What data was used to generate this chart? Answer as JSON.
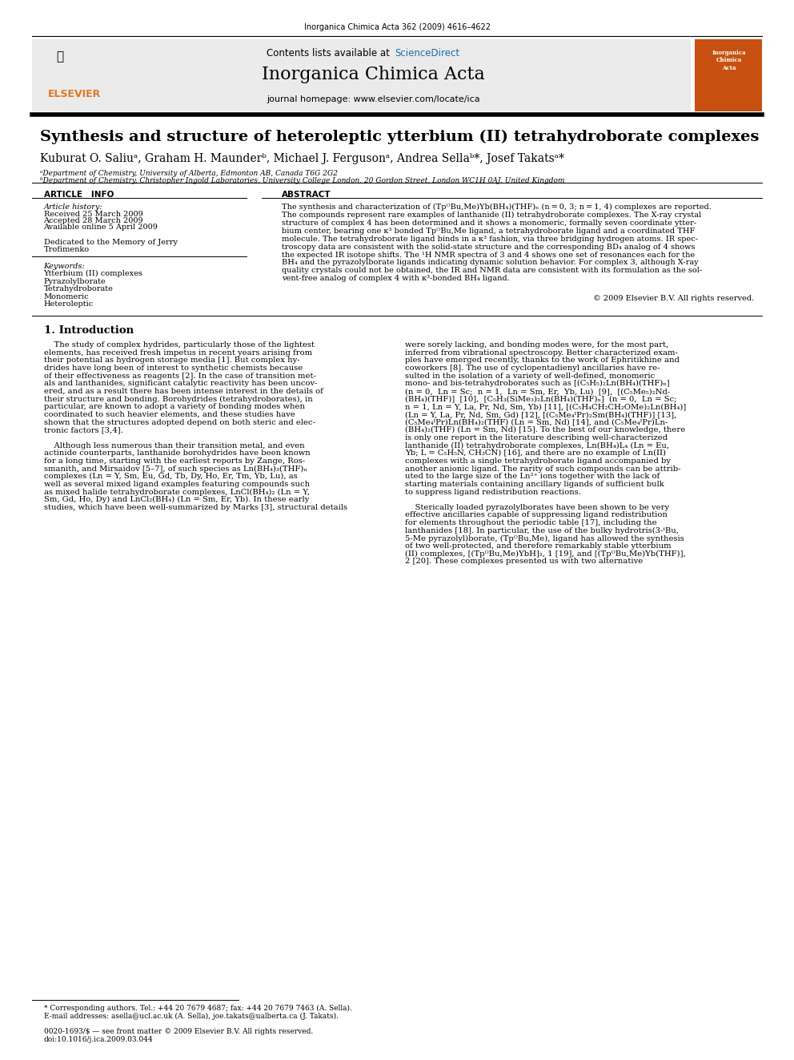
{
  "page_width": 9.92,
  "page_height": 13.23,
  "background_color": "#ffffff",
  "journal_ref": "Inorganica Chimica Acta 362 (2009) 4616–4622",
  "sciencedirect_color": "#1a6ca8",
  "journal_name": "Inorganica Chimica Acta",
  "journal_url": "journal homepage: www.elsevier.com/locate/ica",
  "title": "Synthesis and structure of heteroleptic ytterbium (II) tetrahydroborate complexes",
  "authors": "Kuburat O. Saliuᵃ, Graham H. Maunderᵇ, Michael J. Fergusonᵃ, Andrea Sellaᵇ*, Josef Takatsᵃ*",
  "affil_a": "ᵃDepartment of Chemistry, University of Alberta, Edmonton AB, Canada T6G 2G2",
  "affil_b": "ᵇDepartment of Chemistry, Christopher Ingold Laboratories, University College London, 20 Gordon Street, London WC1H 0AJ, United Kingdom",
  "article_info_title": "ARTICLE   INFO",
  "abstract_title": "ABSTRACT",
  "article_history_label": "Article history:",
  "received": "Received 25 March 2009",
  "accepted": "Accepted 28 March 2009",
  "available": "Available online 5 April 2009",
  "dedication_line1": "Dedicated to the Memory of Jerry",
  "dedication_line2": "Trofimenko",
  "keywords_label": "Keywords:",
  "keywords": [
    "Ytterbium (II) complexes",
    "Pyrazolylborate",
    "Tetrahydroborate",
    "Monomeric",
    "Heteroleptic"
  ],
  "copyright": "© 2009 Elsevier B.V. All rights reserved.",
  "intro_title": "1. Introduction",
  "footnote_star": "* Corresponding authors. Tel.: +44 20 7679 4687; fax: +44 20 7679 7463 (A. Sella).",
  "footnote_email": "E-mail addresses: asella@ucl.ac.uk (A. Sella), joe.takats@ualberta.ca (J. Takats).",
  "issn_line": "0020-1693/$ — see front matter © 2009 Elsevier B.V. All rights reserved.",
  "doi_line": "doi:10.1016/j.ica.2009.03.044",
  "orange_color": "#e07820",
  "cover_color": "#c85010",
  "abstract_lines": [
    "The synthesis and characterization of (TpᴼBu,Me)Yb(BH₄)(THF)ₙ (n = 0, 3; n = 1, 4) complexes are reported.",
    "The compounds represent rare examples of lanthanide (II) tetrahydroborate complexes. The X-ray crystal",
    "structure of complex 4 has been determined and it shows a monomeric, formally seven coordinate ytter-",
    "bium center, bearing one κ³ bonded TpᴼBu,Me ligand, a tetrahydroborate ligand and a coordinated THF",
    "molecule. The tetrahydroborate ligand binds in a κ³ fashion, via three bridging hydrogen atoms. IR spec-",
    "troscopy data are consistent with the solid-state structure and the corresponding BD₄ analog of 4 shows",
    "the expected IR isotope shifts. The ¹H NMR spectra of 3 and 4 shows one set of resonances each for the",
    "BH₄ and the pyrazolylborate ligands indicating dynamic solution behavior. For complex 3, although X-ray",
    "quality crystals could not be obtained, the IR and NMR data are consistent with its formulation as the sol-",
    "vent-free analog of complex 4 with κ³-bonded BH₄ ligand."
  ],
  "intro_col1_lines": [
    "    The study of complex hydrides, particularly those of the lightest",
    "elements, has received fresh impetus in recent years arising from",
    "their potential as hydrogen storage media [1]. But complex hy-",
    "drides have long been of interest to synthetic chemists because",
    "of their effectiveness as reagents [2]. In the case of transition met-",
    "als and lanthanides, significant catalytic reactivity has been uncov-",
    "ered, and as a result there has been intense interest in the details of",
    "their structure and bonding. Borohydrides (tetrahydroborates), in",
    "particular, are known to adopt a variety of bonding modes when",
    "coordinated to such heavier elements, and these studies have",
    "shown that the structures adopted depend on both steric and elec-",
    "tronic factors [3,4].",
    "",
    "    Although less numerous than their transition metal, and even",
    "actinide counterparts, lanthanide borohydrides have been known",
    "for a long time, starting with the earliest reports by Zange, Ros-",
    "smanith, and Mirsaidov [5–7], of such species as Ln(BH₄)₃(THF)ₙ",
    "complexes (Ln = Y, Sm, Eu, Gd, Tb, Dy, Ho, Er, Tm, Yb, Lu), as",
    "well as several mixed ligand examples featuring compounds such",
    "as mixed halide tetrahydroborate complexes, LnCl(BH₄)₂ (Ln = Y,",
    "Sm, Gd, Ho, Dy) and LnCl₂(BH₄) (Ln = Sm, Er, Yb). In these early",
    "studies, which have been well-summarized by Marks [3], structural details"
  ],
  "intro_col2_lines": [
    "were sorely lacking, and bonding modes were, for the most part,",
    "inferred from vibrational spectroscopy. Better characterized exam-",
    "ples have emerged recently, thanks to the work of Ephritikhine and",
    "coworkers [8]. The use of cyclopentadienyl ancillaries have re-",
    "sulted in the isolation of a variety of well-defined, monomeric",
    "mono- and bis-tetrahydroborates such as [(C₅H₅)₂Ln(BH₄)(THF)ₙ]",
    "(n = 0,  Ln = Sc;  n = 1,  Ln = Sm, Er,  Yb, Lu)  [9],  [(C₅Me₅)₂Nd-",
    "(BH₄)(THF)]  [10],  [C₅H₃(SiMe₃)₂Ln(BH₄)(THF)ₙ]  (n = 0,  Ln = Sc;",
    "n = 1, Ln = Y, La, Pr, Nd, Sm, Yb) [11], [(C₅H₄CH₂CH₂OMe)₂Ln(BH₄)]",
    "(Ln = Y, La, Pr, Nd, Sm, Gd) [12], [(C₅Me₄ᴵPr)₂Sm(BH₄)(THF)] [13],",
    "(C₅Me₄ᴵPr)Ln(BH₄)₂(THF) (Ln = Sm, Nd) [14], and (C₅Me₄ᴵPr)Ln-",
    "(BH₄)₂(THF) (Ln = Sm, Nd) [15]. To the best of our knowledge, there",
    "is only one report in the literature describing well-characterized",
    "lanthanide (II) tetrahydroborate complexes, Ln(BH₄)L₄ (Ln = Eu,",
    "Yb; L = C₅H₅N, CH₃CN) [16], and there are no example of Ln(II)",
    "complexes with a single tetrahydroborate ligand accompanied by",
    "another anionic ligand. The rarity of such compounds can be attrib-",
    "uted to the large size of the Ln²⁺ ions together with the lack of",
    "starting materials containing ancillary ligands of sufficient bulk",
    "to suppress ligand redistribution reactions.",
    "",
    "    Sterically loaded pyrazolylborates have been shown to be very",
    "effective ancillaries capable of suppressing ligand redistribution",
    "for elements throughout the periodic table [17], including the",
    "lanthanides [18]. In particular, the use of the bulky hydrotris(3-ᵗBu,",
    "5-Me pyrazolyl)borate, (TpᴼBu,Me), ligand has allowed the synthesis",
    "of two well-protected, and therefore remarkably stable ytterbium",
    "(II) complexes, [(TpᴼBu,Me)YbH]₂, 1 [19], and [(TpᴼBu,Me)Yb(THF)],",
    "2 [20]. These complexes presented us with two alternative"
  ]
}
